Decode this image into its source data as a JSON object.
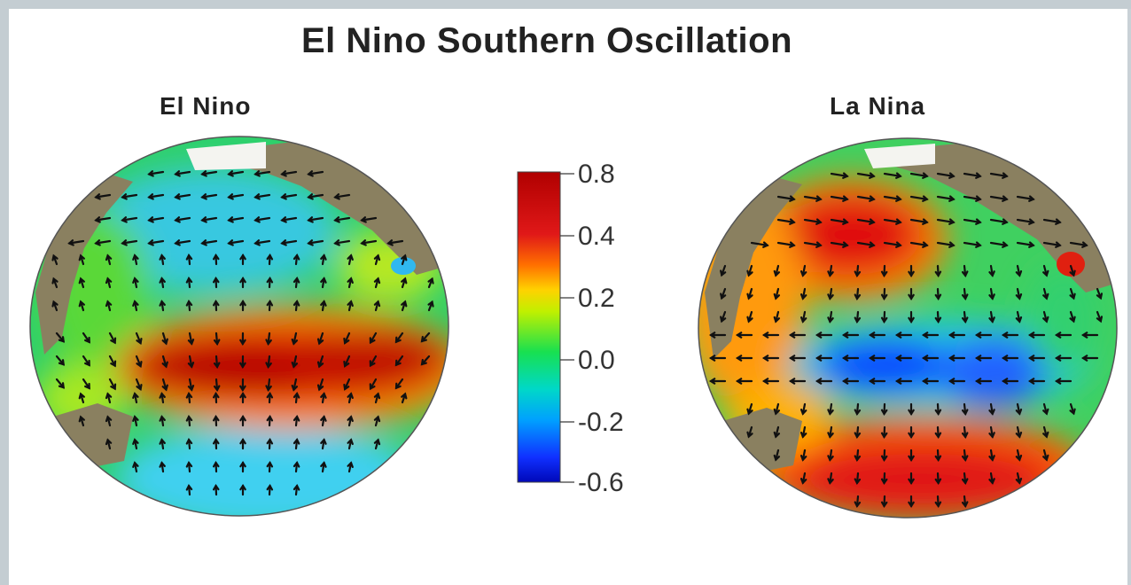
{
  "title": "El Nino Southern Oscillation",
  "panels": [
    {
      "name": "El Nino"
    },
    {
      "name": "La Nina"
    }
  ],
  "colorbar": {
    "ticks": [
      "0.8",
      "0.4",
      "0.2",
      "0.0",
      "-0.2",
      "-0.6"
    ],
    "colors": [
      "#b30000",
      "#e01010",
      "#ff6a00",
      "#ffd000",
      "#b8f000",
      "#18e050",
      "#00d8c0",
      "#00a8ff",
      "#1030ff",
      "#0010c0"
    ]
  }
}
